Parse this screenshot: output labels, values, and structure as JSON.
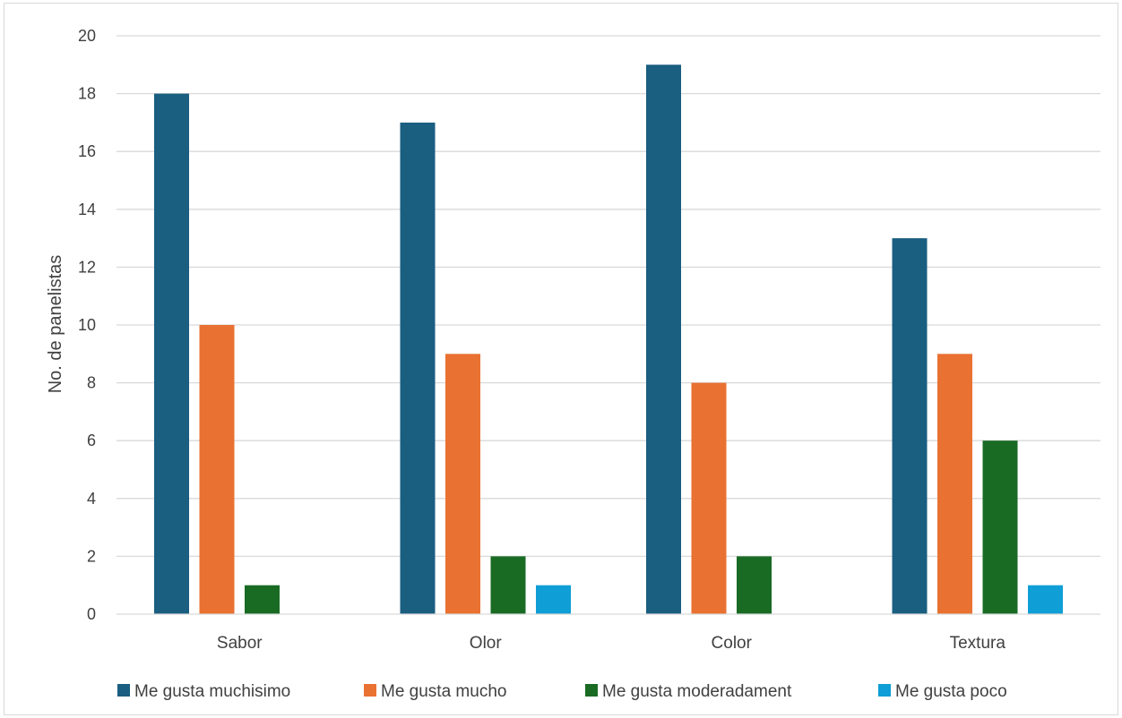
{
  "chart_data": {
    "type": "bar",
    "title": "",
    "xlabel": "",
    "ylabel": "No. de panelistas",
    "ylim": [
      0,
      20
    ],
    "yticks": [
      0,
      2,
      4,
      6,
      8,
      10,
      12,
      14,
      16,
      18,
      20
    ],
    "grid": true,
    "legend_position": "bottom",
    "categories": [
      "Sabor",
      "Olor",
      "Color",
      "Textura"
    ],
    "series": [
      {
        "name": "Me gusta muchisimo",
        "color": "#1a5e80",
        "values": [
          18,
          17,
          19,
          13
        ]
      },
      {
        "name": "Me gusta mucho",
        "color": "#e97132",
        "values": [
          10,
          9,
          8,
          9
        ]
      },
      {
        "name": "Me gusta moderadament",
        "color": "#196b24",
        "values": [
          1,
          2,
          2,
          6
        ]
      },
      {
        "name": "Me gusta poco",
        "color": "#0f9ed5",
        "values": [
          0,
          1,
          0,
          1
        ]
      }
    ]
  }
}
